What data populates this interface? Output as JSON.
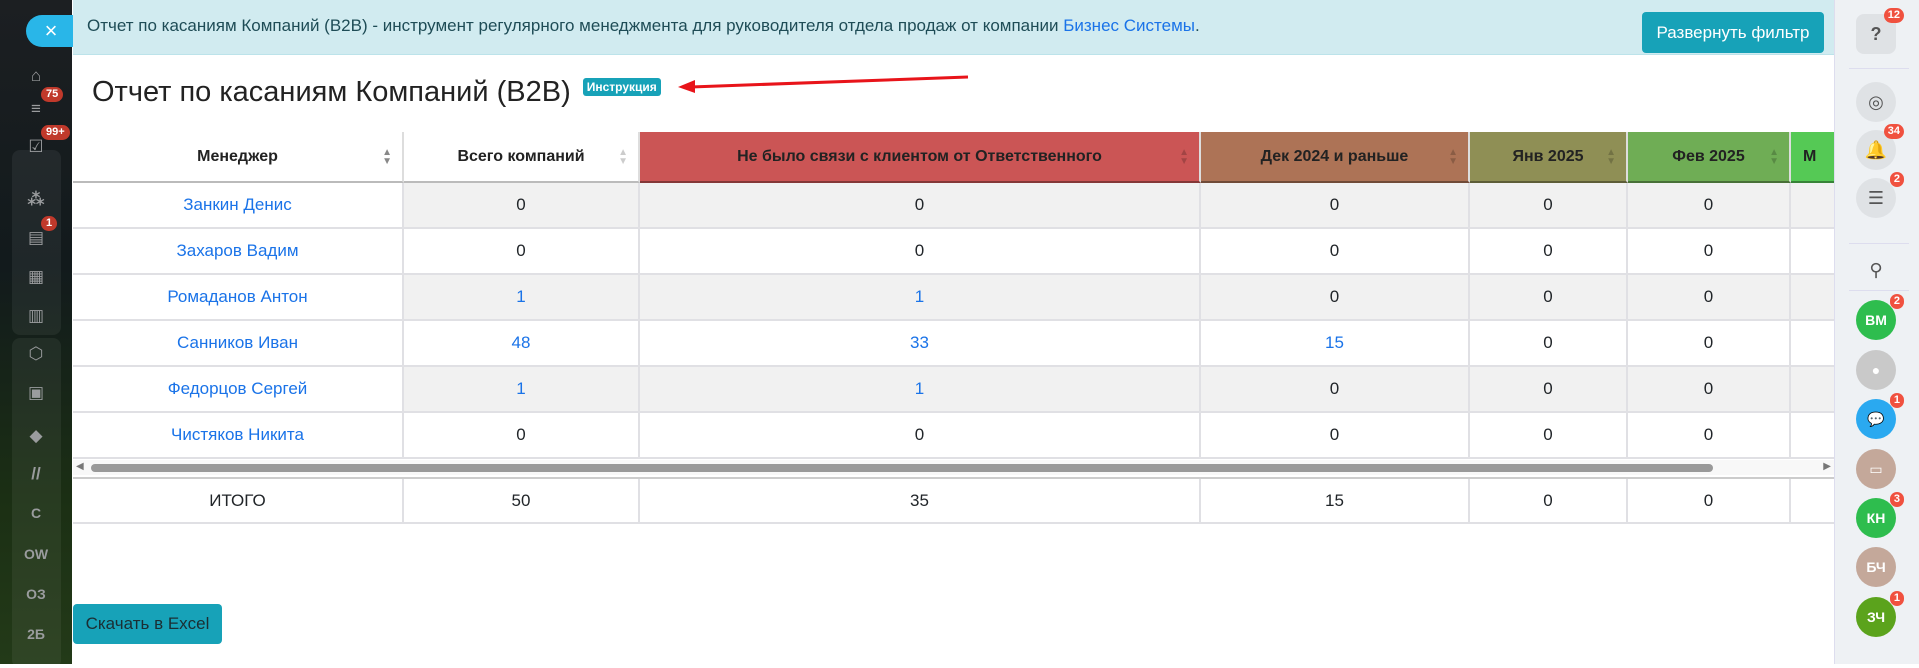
{
  "left_sidebar": {
    "close_icon": "×",
    "items": [
      {
        "icon": "home-icon",
        "glyph": "⌂"
      },
      {
        "icon": "filter-icon",
        "glyph": "≡",
        "badge": "75"
      },
      {
        "icon": "tasks-icon",
        "glyph": "☑",
        "badge": "99+"
      },
      {
        "icon": "sites-icon",
        "glyph": "⁂"
      },
      {
        "icon": "feed-icon",
        "glyph": "▤",
        "badge": "1"
      },
      {
        "icon": "calendar-icon",
        "glyph": "▦"
      },
      {
        "icon": "document-icon",
        "glyph": "▥"
      },
      {
        "icon": "hexagon-icon",
        "glyph": "⬡"
      },
      {
        "icon": "presentation-icon",
        "glyph": "▣"
      },
      {
        "icon": "box-icon",
        "glyph": "◆"
      },
      {
        "icon": "logo-icon",
        "glyph": "//"
      },
      {
        "label": "С"
      },
      {
        "label": "OW"
      },
      {
        "label": "ОЗ"
      },
      {
        "label": "2Б"
      }
    ]
  },
  "banner": {
    "text": "Отчет по касаниям Компаний (B2B) - инструмент регулярного менеджмента для руководителя отдела продаж от компании ",
    "link": "Бизнес Системы",
    "suffix": ".",
    "filter_button": "Развернуть фильтр"
  },
  "page_title": "Отчет по касаниям Компаний (B2B)",
  "instruction_badge": "Инструкция",
  "colors": {
    "accent": "#17a2b8",
    "link": "#1a73e8",
    "no_contact": "#cb5555",
    "dec": "#ad7356",
    "jan": "#8f8f55",
    "feb": "#6fad55",
    "mar": "#55c955"
  },
  "table": {
    "columns": [
      {
        "label": "Менеджер",
        "bg": "#ffffff"
      },
      {
        "label": "Всего компаний",
        "bg": "#ffffff"
      },
      {
        "label": "Не было связи с клиентом от Ответственного",
        "bg": "#cb5555"
      },
      {
        "label": "Дек 2024 и раньше",
        "bg": "#ad7356"
      },
      {
        "label": "Янв 2025",
        "bg": "#8f8f55"
      },
      {
        "label": "Фев 2025",
        "bg": "#6fad55"
      },
      {
        "label": "М",
        "bg": "#55c955"
      }
    ],
    "rows": [
      [
        "Занкин Денис",
        "0",
        "0",
        "0",
        "0",
        "0",
        ""
      ],
      [
        "Захаров Вадим",
        "0",
        "0",
        "0",
        "0",
        "0",
        ""
      ],
      [
        "Ромаданов Антон",
        "1",
        "1",
        "0",
        "0",
        "0",
        ""
      ],
      [
        "Санников Иван",
        "48",
        "33",
        "15",
        "0",
        "0",
        ""
      ],
      [
        "Федорцов Сергей",
        "1",
        "1",
        "0",
        "0",
        "0",
        ""
      ],
      [
        "Чистяков Никита",
        "0",
        "0",
        "0",
        "0",
        "0",
        ""
      ]
    ],
    "total": [
      "ИТОГО",
      "50",
      "35",
      "15",
      "0",
      "0",
      ""
    ]
  },
  "excel_button": "Скачать в Excel",
  "right_sidebar": [
    {
      "icon": "help-icon",
      "glyph": "?",
      "badge": "12"
    },
    {
      "icon": "copilot-icon",
      "glyph": "◎"
    },
    {
      "icon": "bell-icon",
      "glyph": "🔔",
      "badge": "34"
    },
    {
      "icon": "chat-list-icon",
      "glyph": "☰",
      "badge": "2"
    },
    {
      "icon": "search-icon",
      "glyph": "⚲"
    },
    {
      "icon": "avatar-vm",
      "label": "ВМ",
      "badge": "2",
      "color": "#2ebd4e"
    },
    {
      "icon": "avatar-photo",
      "glyph": "●",
      "color": "#c9c9c9"
    },
    {
      "icon": "chat-icon",
      "glyph": "💬",
      "badge": "1",
      "color": "#2aa9f0"
    },
    {
      "icon": "contact-card-icon",
      "glyph": "▭",
      "color": "#c4a89a"
    },
    {
      "icon": "avatar-kn",
      "label": "КН",
      "badge": "3",
      "color": "#2ebd4e"
    },
    {
      "icon": "avatar-bch",
      "label": "БЧ",
      "color": "#c4a89a"
    },
    {
      "icon": "avatar-zch",
      "label": "ЗЧ",
      "badge": "1",
      "color": "#5ba31c"
    }
  ]
}
